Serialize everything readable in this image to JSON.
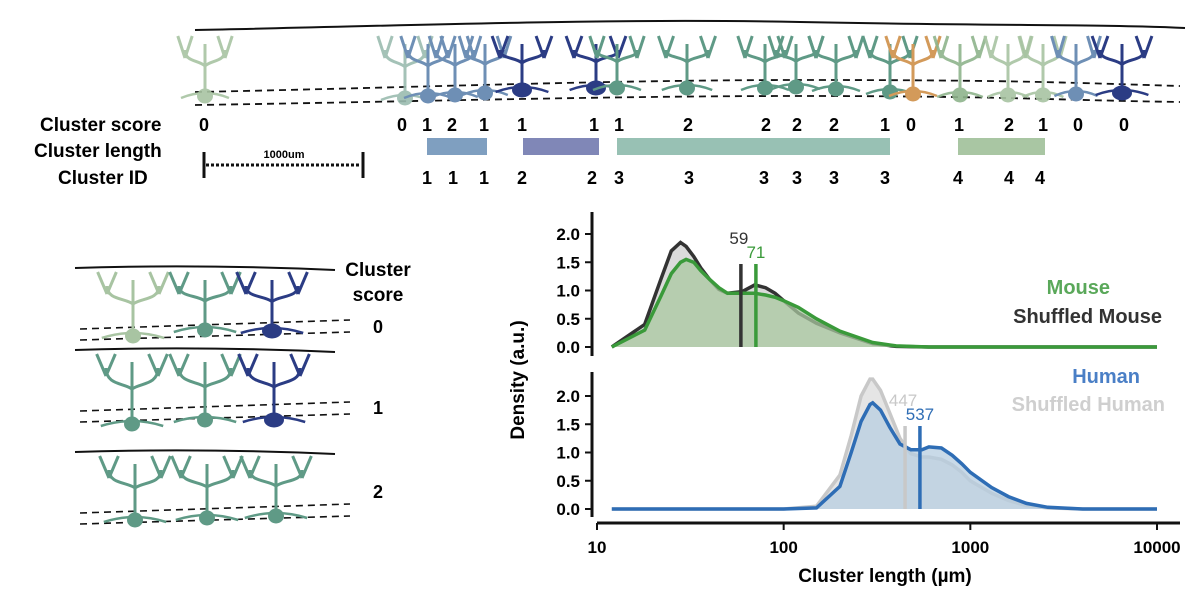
{
  "top_panel": {
    "row_labels": {
      "score": "Cluster score",
      "length": "Cluster length",
      "id": "Cluster ID"
    },
    "scale_bar_label": "1000um",
    "scores": [
      "0",
      "0",
      "1",
      "2",
      "1",
      "1",
      "1",
      "1",
      "2",
      "2",
      "2",
      "2",
      "1",
      "0",
      "1",
      "2",
      "1",
      "0",
      "0"
    ],
    "ids": [
      "1",
      "1",
      "1",
      "2",
      "2",
      "3",
      "3",
      "3",
      "3",
      "3",
      "3",
      "4",
      "4",
      "4"
    ],
    "colors": {
      "cluster1": "#7f9fc0",
      "cluster2": "#8087b7",
      "cluster3": "#98c1b4",
      "cluster4": "#a9c6a3"
    }
  },
  "left_panel": {
    "title_line1": "Cluster",
    "title_line2": "score",
    "examples": [
      "0",
      "1",
      "2"
    ]
  },
  "chart_data": {
    "type": "area",
    "xlabel": "Cluster length (µm)",
    "ylabel": "Density (a.u.)",
    "x_scale": "log",
    "xlim": [
      10,
      10000
    ],
    "x_ticks": [
      "10",
      "100",
      "1000",
      "10000"
    ],
    "y_ticks": [
      "0.0",
      "0.5",
      "1.0",
      "1.5",
      "2.0"
    ],
    "panels": [
      {
        "name": "mouse",
        "ylim": [
          0,
          2.3
        ],
        "series": [
          {
            "name": "Mouse",
            "color": "#3a9a3a",
            "median": 71,
            "median_label": "71",
            "x": [
              12,
              18,
              22,
              25,
              28,
              30,
              33,
              36,
              40,
              45,
              50,
              60,
              70,
              80,
              90,
              100,
              120,
              150,
              200,
              300,
              400,
              600,
              1000,
              10000
            ],
            "y": [
              0.0,
              0.3,
              0.9,
              1.3,
              1.5,
              1.55,
              1.5,
              1.35,
              1.2,
              1.05,
              0.95,
              0.95,
              0.95,
              0.92,
              0.88,
              0.82,
              0.7,
              0.5,
              0.28,
              0.08,
              0.02,
              0.0,
              0.0,
              0.0
            ]
          },
          {
            "name": "Shuffled Mouse",
            "color": "#333333",
            "median": 59,
            "median_label": "59",
            "x": [
              12,
              18,
              22,
              25,
              28,
              30,
              33,
              36,
              40,
              45,
              50,
              60,
              70,
              80,
              90,
              100,
              120,
              150,
              200,
              300,
              400,
              600,
              10000
            ],
            "y": [
              0.0,
              0.4,
              1.2,
              1.7,
              1.85,
              1.78,
              1.6,
              1.4,
              1.2,
              1.02,
              0.95,
              0.98,
              1.1,
              1.05,
              0.95,
              0.82,
              0.6,
              0.42,
              0.25,
              0.06,
              0.01,
              0.0,
              0.0
            ]
          }
        ]
      },
      {
        "name": "human",
        "ylim": [
          0,
          2.3
        ],
        "series": [
          {
            "name": "Human",
            "color": "#2e6db5",
            "median": 537,
            "median_label": "537",
            "x": [
              12,
              100,
              150,
              200,
              230,
              260,
              290,
              300,
              330,
              370,
              420,
              480,
              550,
              600,
              700,
              800,
              900,
              1000,
              1300,
              1600,
              2000,
              2600,
              4000,
              10000
            ],
            "y": [
              0.0,
              0.0,
              0.02,
              0.4,
              1.0,
              1.55,
              1.85,
              1.88,
              1.75,
              1.45,
              1.15,
              1.05,
              1.05,
              1.1,
              1.08,
              0.95,
              0.8,
              0.65,
              0.38,
              0.22,
              0.1,
              0.03,
              0.0,
              0.0
            ]
          },
          {
            "name": "Shuffled Human",
            "color": "#c8c8c8",
            "median": 447,
            "median_label": "447",
            "x": [
              12,
              100,
              150,
              200,
              230,
              260,
              290,
              300,
              330,
              370,
              420,
              480,
              550,
              600,
              700,
              800,
              900,
              1000,
              1300,
              1600,
              2000,
              2600,
              4000,
              10000
            ],
            "y": [
              0.0,
              0.0,
              0.05,
              0.6,
              1.3,
              2.0,
              2.3,
              2.3,
              2.1,
              1.7,
              1.25,
              0.98,
              0.92,
              0.92,
              0.88,
              0.78,
              0.65,
              0.5,
              0.28,
              0.15,
              0.06,
              0.02,
              0.0,
              0.0
            ]
          }
        ]
      }
    ]
  }
}
